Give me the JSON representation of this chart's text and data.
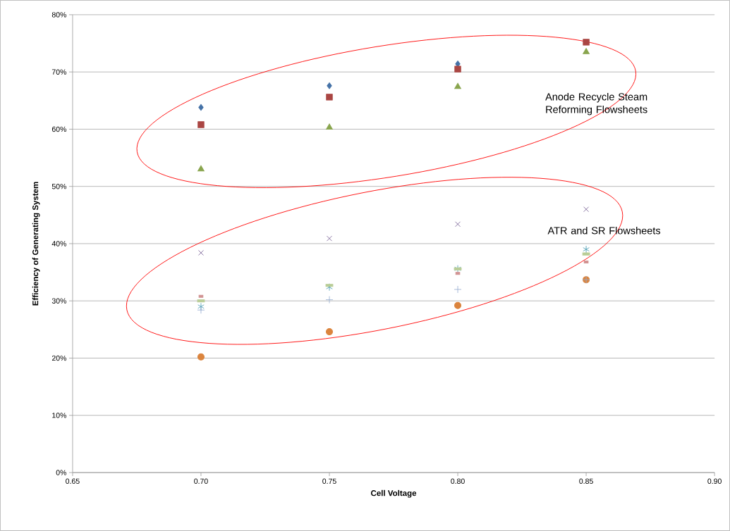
{
  "chart_data": {
    "type": "scatter",
    "xlabel": "Cell Voltage",
    "ylabel": "Efficiency of Generating System",
    "x": [
      0.7,
      0.75,
      0.8,
      0.85
    ],
    "series": [
      {
        "color": "#4572a7",
        "marker": "diamond",
        "values": [
          63.8,
          67.6,
          71.4,
          null
        ]
      },
      {
        "color": "#aa4643",
        "marker": "square",
        "values": [
          60.8,
          65.6,
          70.5,
          75.2
        ]
      },
      {
        "color": "#89a54e",
        "marker": "triangle",
        "values": [
          53.0,
          60.3,
          67.4,
          73.5
        ]
      },
      {
        "color": "#71588f",
        "marker": "cross",
        "values": [
          38.4,
          40.9,
          43.4,
          46.0
        ]
      },
      {
        "color": "#4198af",
        "marker": "cross",
        "values": [
          29.0,
          32.4,
          35.6,
          39.0
        ]
      },
      {
        "color": "#db843d",
        "marker": "circle",
        "values": [
          20.2,
          24.6,
          29.2,
          33.7
        ]
      },
      {
        "color": "#93a9cf",
        "marker": "cross",
        "values": [
          28.4,
          30.2,
          32.0,
          33.7
        ]
      },
      {
        "color": "#d19392",
        "marker": "square",
        "values": [
          30.8,
          null,
          34.8,
          36.8
        ]
      },
      {
        "color": "#b9cd96",
        "marker": "square",
        "values": [
          30.0,
          32.7,
          35.6,
          38.2
        ]
      }
    ],
    "xlim": [
      0.65,
      0.9
    ],
    "xticks": [
      {
        "value": 0.65,
        "label": "0.65"
      },
      {
        "value": 0.7,
        "label": "0.70"
      },
      {
        "value": 0.75,
        "label": "0.75"
      },
      {
        "value": 0.8,
        "label": "0.80"
      },
      {
        "value": 0.85,
        "label": "0.85"
      },
      {
        "value": 0.9,
        "label": "0.90"
      }
    ],
    "ylim": [
      0,
      80
    ],
    "yticks": [
      {
        "value": 0,
        "label": "0%"
      },
      {
        "value": 10,
        "label": "10%"
      },
      {
        "value": 20,
        "label": "20%"
      },
      {
        "value": 30,
        "label": "30%"
      },
      {
        "value": 40,
        "label": "40%"
      },
      {
        "value": 50,
        "label": "50%"
      },
      {
        "value": 60,
        "label": "60%"
      },
      {
        "value": 70,
        "label": "70%"
      },
      {
        "value": 80,
        "label": "80%"
      }
    ],
    "grid": "y",
    "annotations": [
      "Anode Recycle Steam Reforming Flowsheets",
      "ATR and SR Flowsheets"
    ]
  }
}
